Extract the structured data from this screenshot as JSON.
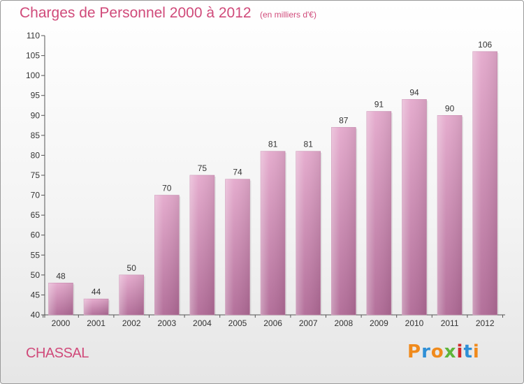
{
  "header": {
    "title": "Charges de Personnel 2000 à 2012",
    "subtitle": "(en milliers d'€)"
  },
  "footer": {
    "commune": "CHASSAL",
    "logo_text": "Proxiti"
  },
  "colors": {
    "accent": "#d04a7a",
    "bar_top": "#e4a9cc",
    "bar_bottom": "#b06a96",
    "logo_letters": [
      "#f08a1c",
      "#2f8fd6",
      "#f08a1c",
      "#5fb53a",
      "#d12a2a",
      "#2f8fd6",
      "#f08a1c"
    ]
  },
  "chart_data": {
    "type": "bar",
    "title": "Charges de Personnel 2000 à 2012",
    "subtitle": "(en milliers d'€)",
    "categories": [
      "2000",
      "2001",
      "2002",
      "2003",
      "2004",
      "2005",
      "2006",
      "2007",
      "2008",
      "2009",
      "2010",
      "2011",
      "2012"
    ],
    "values": [
      48,
      44,
      50,
      70,
      75,
      74,
      81,
      81,
      87,
      91,
      94,
      90,
      106
    ],
    "ylim": [
      40,
      110
    ],
    "yticks": [
      40,
      45,
      50,
      55,
      60,
      65,
      70,
      75,
      80,
      85,
      90,
      95,
      100,
      105,
      110
    ],
    "grid": false,
    "data_labels": true
  }
}
